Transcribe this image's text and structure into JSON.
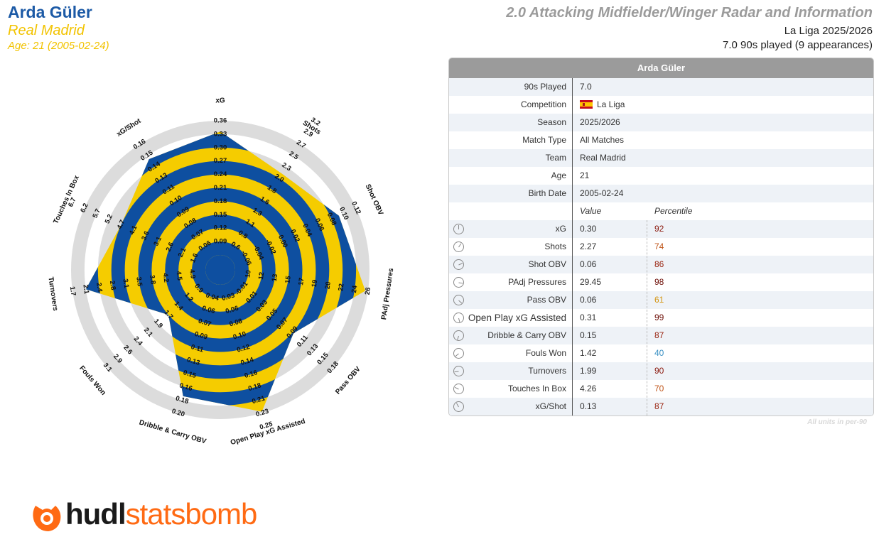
{
  "header": {
    "player": "Arda Güler",
    "team": "Real Madrid",
    "age_line": "Age: 21 (2005-02-24)",
    "title": "2.0 Attacking Midfielder/Winger Radar and Information",
    "competition_line": "La Liga 2025/2026",
    "played_line": "7.0 90s played (9 appearances)"
  },
  "table": {
    "title": "Arda Güler",
    "info": [
      {
        "label": "90s Played",
        "value": "7.0"
      },
      {
        "label": "Competition",
        "value": "La Liga",
        "flag": "spain-flag"
      },
      {
        "label": "Season",
        "value": "2025/2026"
      },
      {
        "label": "Match Type",
        "value": "All Matches"
      },
      {
        "label": "Team",
        "value": "Real Madrid"
      },
      {
        "label": "Age",
        "value": "21"
      },
      {
        "label": "Birth Date",
        "value": "2005-02-24"
      }
    ],
    "value_header": "Value",
    "percentile_header": "Percentile",
    "metrics": [
      {
        "label": "xG",
        "value": "0.30",
        "percentile": "92",
        "color": "#8b1a0e"
      },
      {
        "label": "Shots",
        "value": "2.27",
        "percentile": "74",
        "color": "#c0561b"
      },
      {
        "label": "Shot OBV",
        "value": "0.06",
        "percentile": "86",
        "color": "#9a2612"
      },
      {
        "label": "PAdj Pressures",
        "value": "29.45",
        "percentile": "98",
        "color": "#6e0f08"
      },
      {
        "label": "Pass OBV",
        "value": "0.06",
        "percentile": "61",
        "color": "#d49512"
      },
      {
        "label": "Open Play xG Assisted",
        "value": "0.31",
        "percentile": "99",
        "color": "#6e0f08",
        "big": true
      },
      {
        "label": "Dribble & Carry OBV",
        "value": "0.15",
        "percentile": "87",
        "color": "#9a2612"
      },
      {
        "label": "Fouls Won",
        "value": "1.42",
        "percentile": "40",
        "color": "#3b91c4"
      },
      {
        "label": "Turnovers",
        "value": "1.99",
        "percentile": "90",
        "color": "#8b1a0e"
      },
      {
        "label": "Touches In Box",
        "value": "4.26",
        "percentile": "70",
        "color": "#c0561b"
      },
      {
        "label": "xG/Shot",
        "value": "0.13",
        "percentile": "87",
        "color": "#9a2612"
      }
    ],
    "footnote": "All units in per-90"
  },
  "chart_data": {
    "type": "radar",
    "colors": {
      "fill_a": "#0e4fa0",
      "fill_b": "#f5cc00",
      "ring_grey": "#dcdcdc"
    },
    "axes": [
      {
        "label": "xG",
        "value": 0.3,
        "ticks": [
          "0.09",
          "0.12",
          "0.15",
          "0.18",
          "0.21",
          "0.24",
          "0.27",
          "0.30",
          "0.33",
          "0.36"
        ]
      },
      {
        "label": "Shots",
        "value": 2.27,
        "ticks": [
          "0.6",
          "0.8",
          "1.1",
          "1.3",
          "1.6",
          "1.8",
          "2.0",
          "2.3",
          "2.5",
          "2.7",
          "2.9",
          "3.2"
        ]
      },
      {
        "label": "Shot OBV",
        "value": 0.06,
        "ticks": [
          "-0.06",
          "-0.04",
          "-0.02",
          "0.00",
          "0.02",
          "0.04",
          "0.06",
          "0.08",
          "0.10",
          "0.12"
        ]
      },
      {
        "label": "PAdj Pressures",
        "value": 29.45,
        "ticks": [
          "10",
          "12",
          "13",
          "15",
          "17",
          "19",
          "20",
          "22",
          "24",
          "26"
        ]
      },
      {
        "label": "Pass OBV",
        "value": 0.06,
        "ticks": [
          "-0.01",
          "0.01",
          "0.03",
          "0.05",
          "0.07",
          "0.09",
          "0.11",
          "0.13",
          "0.15",
          "0.18"
        ]
      },
      {
        "label": "Open Play xG Assisted",
        "value": 0.31,
        "ticks": [
          "0.03",
          "0.06",
          "0.08",
          "0.10",
          "0.12",
          "0.14",
          "0.16",
          "0.18",
          "0.21",
          "0.23",
          "0.25"
        ]
      },
      {
        "label": "Dribble & Carry OBV",
        "value": 0.15,
        "ticks": [
          "0.04",
          "0.06",
          "0.07",
          "0.09",
          "0.11",
          "0.13",
          "0.15",
          "0.16",
          "0.18",
          "0.20"
        ]
      },
      {
        "label": "Fouls Won",
        "value": 1.42,
        "ticks": [
          "0.9",
          "1.2",
          "1.4",
          "1.7",
          "1.9",
          "2.1",
          "2.4",
          "2.6",
          "2.9",
          "3.1"
        ]
      },
      {
        "label": "Turnovers",
        "value": 1.99,
        "ticks": [
          "4.9",
          "4.5",
          "4.2",
          "3.8",
          "3.5",
          "3.1",
          "2.8",
          "2.4",
          "2.1",
          "1.7"
        ]
      },
      {
        "label": "Touches In Box",
        "value": 4.26,
        "ticks": [
          "1.6",
          "2.1",
          "2.6",
          "3.1",
          "3.6",
          "4.1",
          "4.7",
          "5.2",
          "5.7",
          "6.2",
          "6.7"
        ]
      },
      {
        "label": "xG/Shot",
        "value": 0.13,
        "ticks": [
          "0.06",
          "0.07",
          "0.08",
          "0.09",
          "0.10",
          "0.11",
          "0.13",
          "0.14",
          "0.15",
          "0.16"
        ]
      }
    ]
  },
  "logo": {
    "hudl": "hudl",
    "statsbomb": "statsbomb"
  }
}
